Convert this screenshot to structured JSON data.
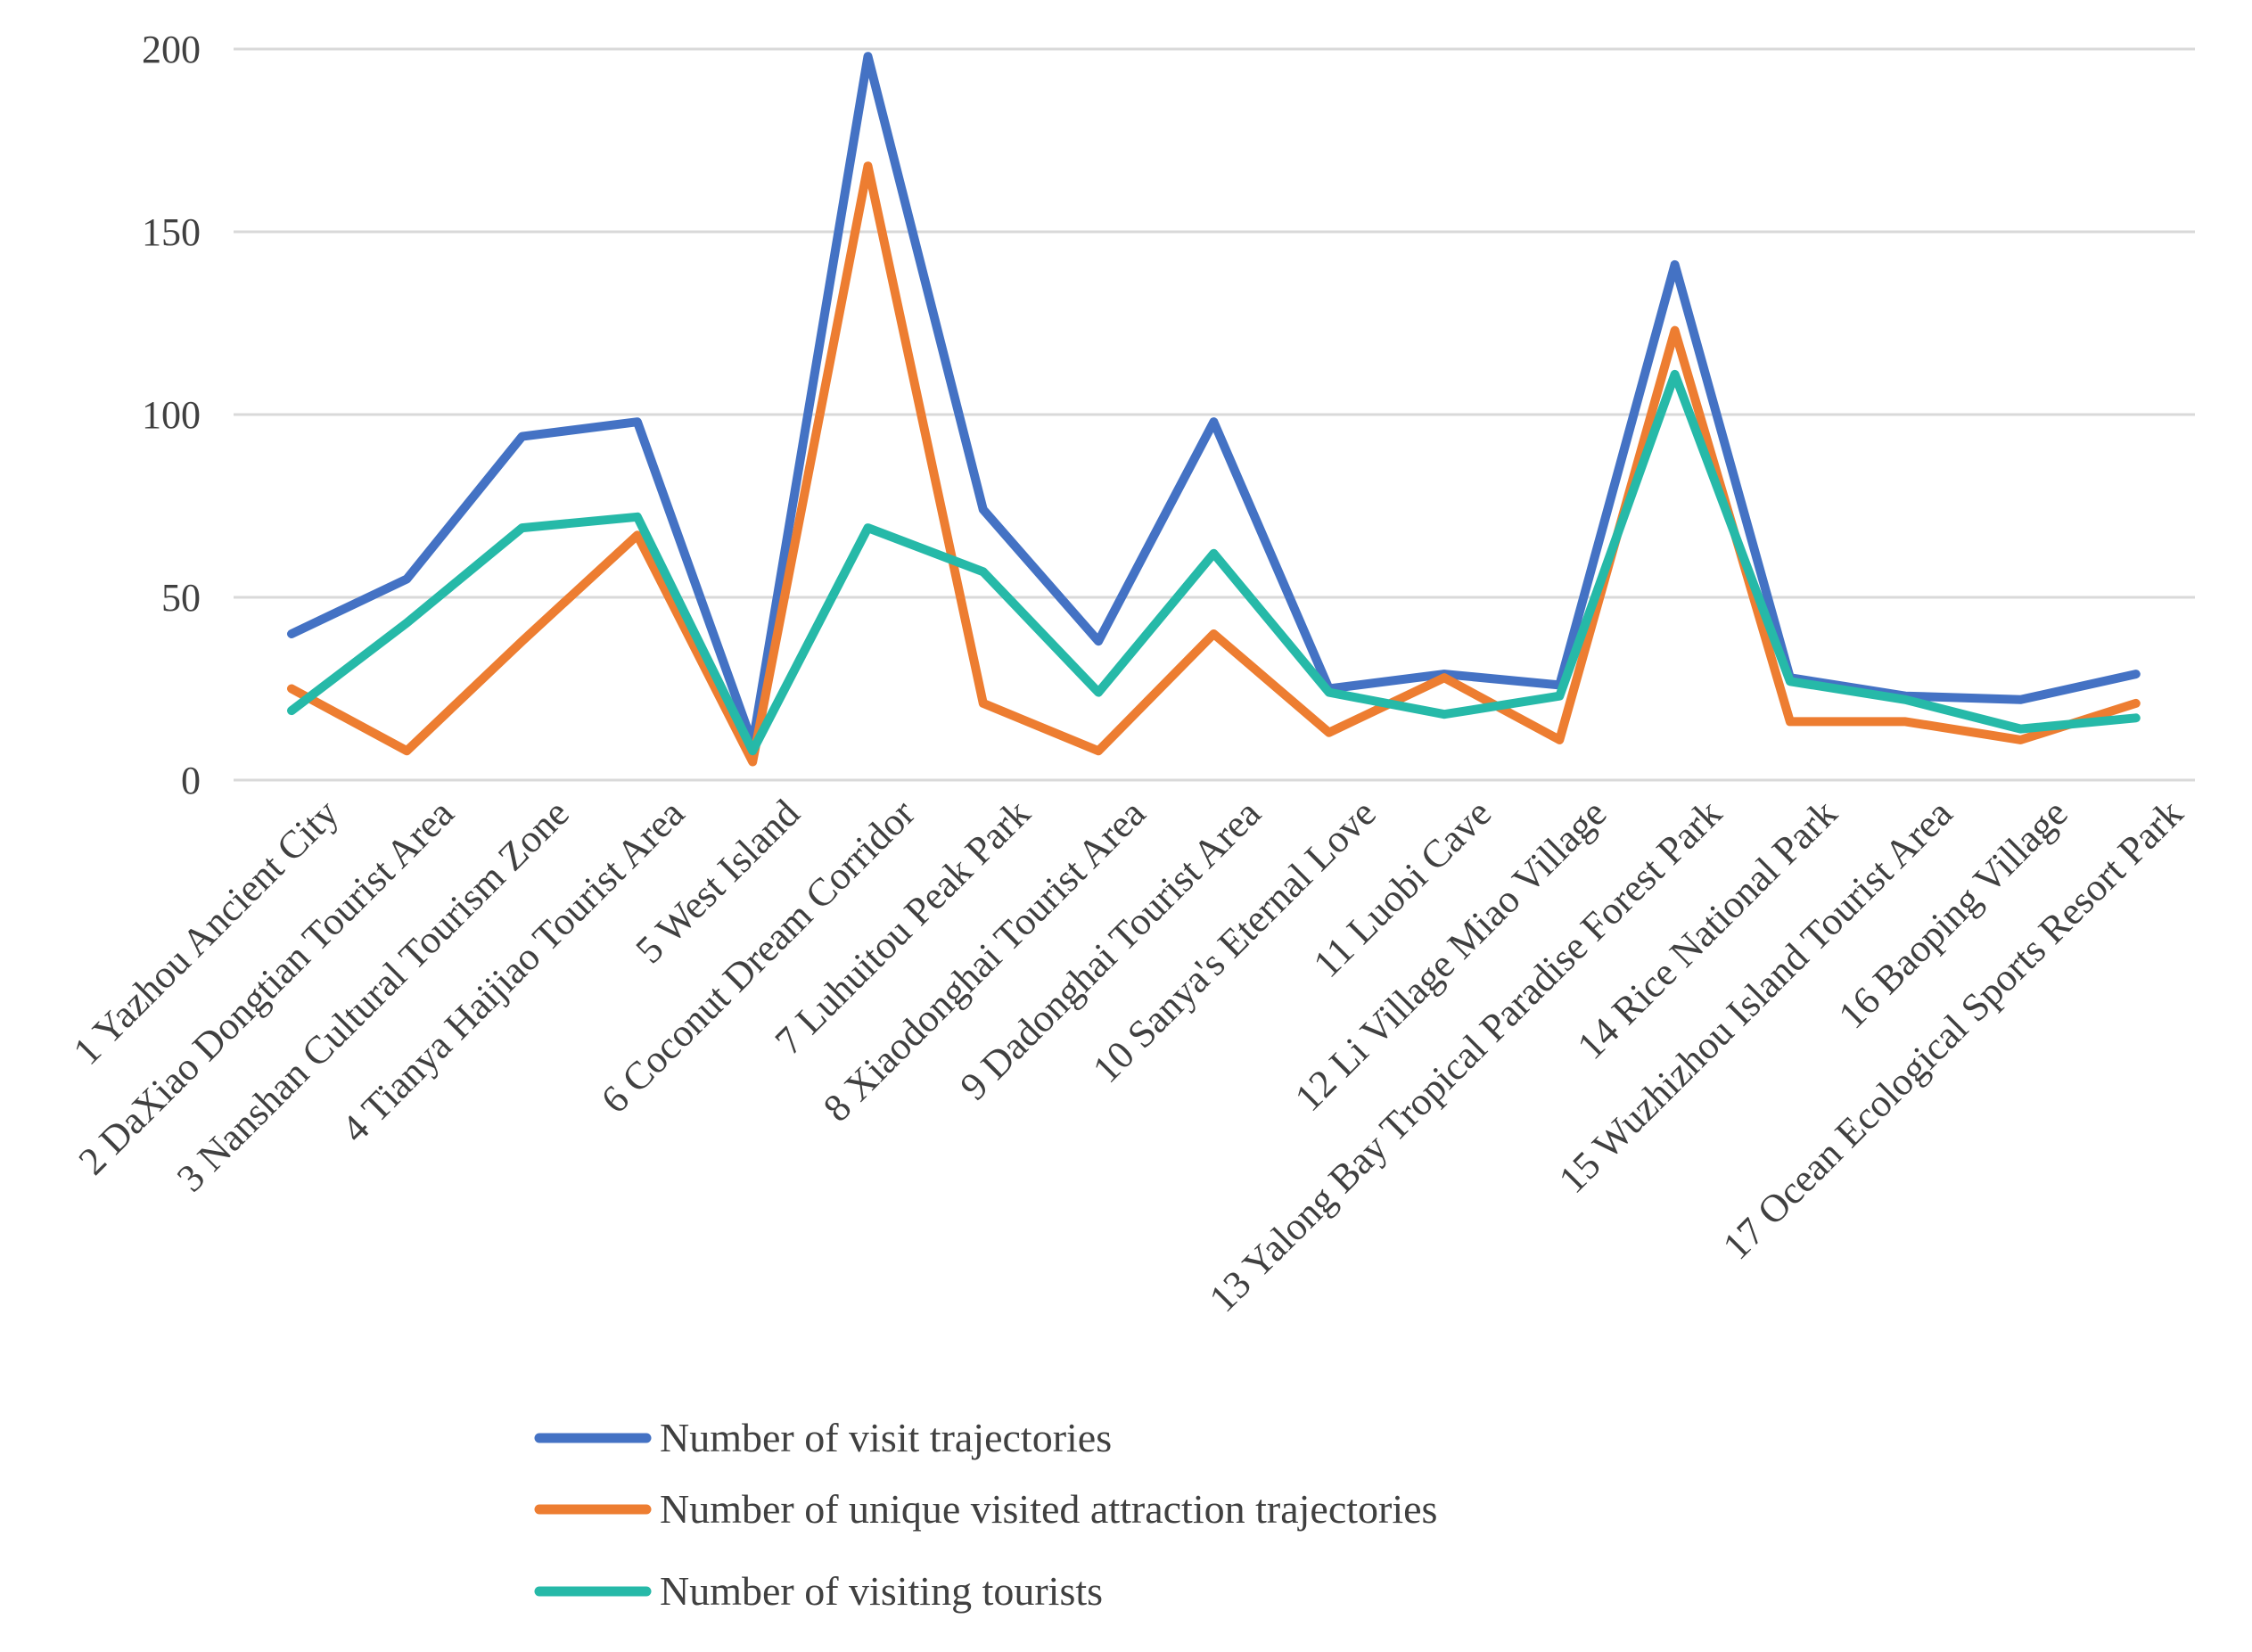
{
  "chart_data": {
    "type": "line",
    "title": "",
    "xlabel": "",
    "ylabel": "",
    "ylim": [
      0,
      200
    ],
    "yticks": [
      0,
      50,
      100,
      150,
      200
    ],
    "grid": true,
    "legend_position": "bottom",
    "categories": [
      "1 Yazhou Ancient City",
      "2 DaXiao Dongtian Tourist Area",
      "3 Nanshan Cultural Tourism Zone",
      "4 Tianya Haijiao Tourist Area",
      "5 West Island",
      "6 Coconut Dream Corridor",
      "7 Luhuitou Peak Park",
      "8 Xiaodonghai Tourist Area",
      "9 Dadonghai Tourist Area",
      "10 Sanya's Eternal Love",
      "11 Luobi Cave",
      "12 Li Village Miao Village",
      "13 Yalong Bay Tropical Paradise Forest Park",
      "14 Rice National Park",
      "15 Wuzhizhou Island Tourist Area",
      "16 Baoping Village",
      "17 Ocean Ecological Sports Resort Park"
    ],
    "series": [
      {
        "name": "Number of visit trajectories",
        "color": "#4472c4",
        "values": [
          40,
          55,
          94,
          98,
          10,
          198,
          74,
          38,
          98,
          25,
          29,
          26,
          141,
          28,
          23,
          22,
          29
        ]
      },
      {
        "name": "Number of unique visited attraction trajectories",
        "color": "#ed7d31",
        "values": [
          25,
          8,
          38,
          67,
          5,
          168,
          21,
          8,
          40,
          13,
          28,
          11,
          123,
          16,
          16,
          11,
          21
        ]
      },
      {
        "name": "Number of visiting tourists",
        "color": "#26b9a8",
        "values": [
          19,
          43,
          69,
          72,
          8,
          69,
          57,
          24,
          62,
          24,
          18,
          23,
          111,
          27,
          22,
          14,
          17
        ]
      }
    ]
  }
}
